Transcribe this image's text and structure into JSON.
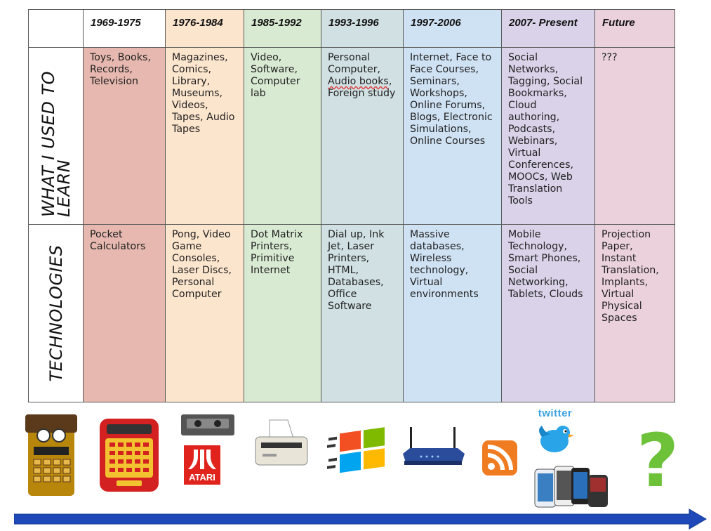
{
  "row_labels": {
    "learn": "What I used to\nlearn",
    "tech": "Technologies"
  },
  "columns": [
    {
      "period": "1969-1975",
      "color": "#e6b8af",
      "learn": "Toys, Books,\nRecords,\nTelevision",
      "tech": "Pocket\nCalculators"
    },
    {
      "period": "1976-1984",
      "color": "#fce5cd",
      "learn": "Magazines,\nComics,\nLibrary,\nMuseums,\nVideos,\nTapes, Audio\nTapes",
      "tech": "Pong, Video\nGame\nConsoles,\nLaser Discs,\nPersonal\nComputer"
    },
    {
      "period": "1985-1992",
      "color": "#d9ead3",
      "learn": "Video,\nSoftware,\nComputer\nlab",
      "tech": "Dot Matrix\nPrinters,\nPrimitive\nInternet"
    },
    {
      "period": "1993-1996",
      "color": "#d0e0e3",
      "learn": "Personal\nComputer,\nAudio books,\nForeign study",
      "tech": "Dial up, Ink\nJet, Laser\nPrinters,\nHTML,\nDatabases,\nOffice\nSoftware"
    },
    {
      "period": "1997-2006",
      "color": "#cfe2f3",
      "learn": "Internet, Face to\nFace Courses,\nSeminars,\nWorkshops,\nOnline Forums,\nBlogs, Electronic\nSimulations,\nOnline Courses",
      "tech": "Massive\ndatabases,\nWireless\ntechnology,\nVirtual\nenvironments"
    },
    {
      "period": "2007- Present",
      "color": "#d9d2e9",
      "learn": "Social\nNetworks,\nTagging, Social\nBookmarks,\nCloud\nauthoring,\nPodcasts,\nWebinars,\nVirtual\nConferences,\nMOOCs, Web\nTranslation\nTools",
      "tech": "Mobile\nTechnology,\nSmart Phones,\nSocial\nNetworking,\nTablets, Clouds"
    },
    {
      "period": "Future",
      "color": "#ead1dc",
      "learn": "???",
      "tech": "Projection\nPaper,\nInstant\nTranslation,\nImplants,\nVirtual\nPhysical\nSpaces"
    }
  ],
  "icons": {
    "atari_text": "ATARI",
    "twitter_text": "twitter",
    "question_mark": "?"
  },
  "arrow_color": "#1f49b8"
}
